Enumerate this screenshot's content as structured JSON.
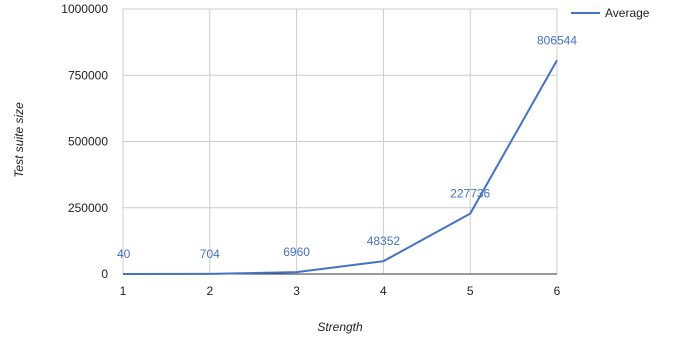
{
  "chart_data": {
    "type": "line",
    "title": "",
    "xlabel": "Strength",
    "ylabel": "Test suite size",
    "x": [
      1,
      2,
      3,
      4,
      5,
      6
    ],
    "x_tick_labels": [
      "1",
      "2",
      "3",
      "4",
      "5",
      "6"
    ],
    "xlim": [
      1,
      6
    ],
    "ylim": [
      0,
      1000000
    ],
    "y_ticks": [
      0,
      250000,
      500000,
      750000,
      1000000
    ],
    "y_tick_labels": [
      "0",
      "250000",
      "500000",
      "750000",
      "1000000"
    ],
    "grid": true,
    "legend_position": "top-right",
    "series": [
      {
        "name": "Average",
        "color": "#4472c4",
        "values": [
          40,
          704,
          6960,
          48352,
          227736,
          806544
        ],
        "data_labels": [
          "40",
          "704",
          "6960",
          "48352",
          "227736",
          "806544"
        ]
      }
    ]
  }
}
